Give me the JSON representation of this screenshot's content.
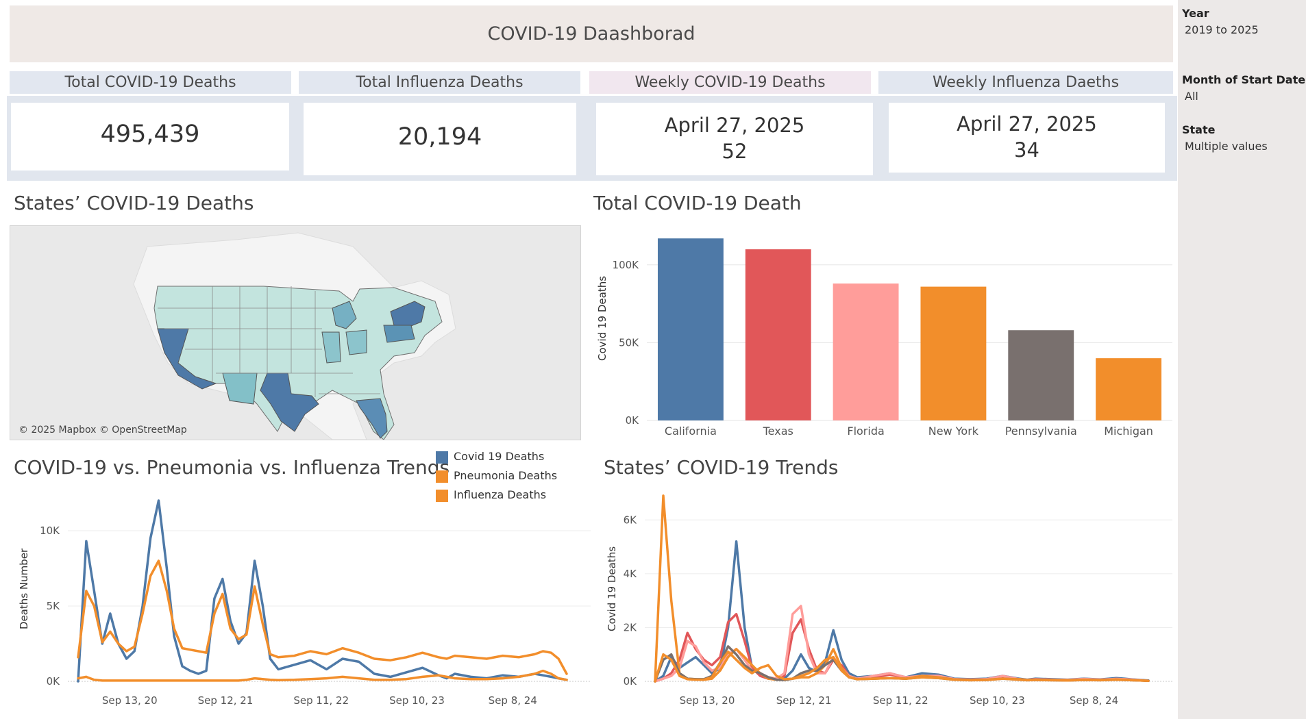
{
  "title": "COVID-19 Daashborad",
  "kpis": [
    {
      "header": "Total COVID-19 Deaths",
      "value": "495,439"
    },
    {
      "header": "Total Influenza Deaths",
      "value": "20,194"
    },
    {
      "header": "Weekly COVID-19 Deaths",
      "date": "April 27, 2025",
      "value": "52"
    },
    {
      "header": "Weekly Influenza Daeths",
      "date": "April 27, 2025",
      "value": "34"
    }
  ],
  "sections": {
    "map_title": "States’ COVID-19 Deaths",
    "bar_title": "Total COVID-19 Death",
    "trends_title": "COVID-19 vs. Pneumonia vs. Influenza Trends",
    "state_trends_title": "States’ COVID-19 Trends"
  },
  "map": {
    "credit": "© 2025 Mapbox © OpenStreetMap"
  },
  "filters": [
    {
      "label": "Year",
      "value": "2019 to 2025"
    },
    {
      "label": "Month of Start Date",
      "value": "All"
    },
    {
      "label": "State",
      "value": "Multiple values"
    }
  ],
  "legend": [
    {
      "label": "Covid 19 Deaths",
      "color": "#4e79a7"
    },
    {
      "label": "Pneumonia Deaths",
      "color": "#f28e2b"
    },
    {
      "label": "Influenza Deaths",
      "color": "#f28e2b"
    }
  ],
  "colors": {
    "california": "#4e79a7",
    "texas": "#e15759",
    "florida": "#ff9d9a",
    "new_york": "#f28e2b",
    "pennsylvania": "#79706e",
    "michigan": "#f28e2b"
  },
  "chart_data": [
    {
      "type": "bar",
      "title": "Total COVID-19 Death",
      "ylabel": "Covid 19 Deaths",
      "categories": [
        "California",
        "Texas",
        "Florida",
        "New York",
        "Pennsylvania",
        "Michigan"
      ],
      "values": [
        117000,
        110000,
        88000,
        86000,
        58000,
        40000
      ],
      "yticks": [
        "0K",
        "50K",
        "100K"
      ],
      "ylim": [
        0,
        125000
      ]
    },
    {
      "type": "line",
      "title": "COVID-19 vs. Pneumonia vs. Influenza Trends",
      "ylabel": "Deaths Number",
      "x": [
        "2020-03-01",
        "2020-04-01",
        "2020-05-01",
        "2020-06-01",
        "2020-07-01",
        "2020-08-01",
        "2020-09-01",
        "2020-10-01",
        "2020-11-01",
        "2020-12-01",
        "2021-01-01",
        "2021-02-01",
        "2021-03-01",
        "2021-04-01",
        "2021-05-01",
        "2021-06-01",
        "2021-07-01",
        "2021-08-01",
        "2021-09-01",
        "2021-10-01",
        "2021-11-01",
        "2021-12-01",
        "2022-01-01",
        "2022-02-01",
        "2022-03-01",
        "2022-04-01",
        "2022-06-01",
        "2022-08-01",
        "2022-10-01",
        "2022-12-01",
        "2023-02-01",
        "2023-04-01",
        "2023-06-01",
        "2023-08-01",
        "2023-10-01",
        "2023-12-01",
        "2024-01-01",
        "2024-02-01",
        "2024-04-01",
        "2024-06-01",
        "2024-08-01",
        "2024-10-01",
        "2024-12-01",
        "2025-01-01",
        "2025-02-01",
        "2025-03-01",
        "2025-04-01"
      ],
      "xticks": [
        "Sep 13, 20",
        "Sep 12, 21",
        "Sep 11, 22",
        "Sep 10, 23",
        "Sep 8, 24"
      ],
      "yticks": [
        "0K",
        "5K",
        "10K"
      ],
      "ylim": [
        0,
        12500
      ],
      "series": [
        {
          "name": "Covid 19 Deaths",
          "values": [
            0,
            9300,
            6000,
            2500,
            4500,
            2500,
            1500,
            2000,
            5000,
            9500,
            12000,
            7500,
            3000,
            1000,
            700,
            500,
            700,
            5500,
            6800,
            4000,
            2500,
            3200,
            8000,
            5000,
            1500,
            800,
            1100,
            1400,
            800,
            1500,
            1300,
            500,
            300,
            600,
            900,
            400,
            200,
            500,
            300,
            200,
            400,
            300,
            500,
            400,
            300,
            200,
            100
          ]
        },
        {
          "name": "Pneumonia Deaths",
          "values": [
            1600,
            6000,
            5000,
            2600,
            3300,
            2500,
            2000,
            2300,
            4500,
            7000,
            8000,
            6000,
            3500,
            2200,
            2100,
            2000,
            1900,
            4500,
            5800,
            3500,
            2800,
            3100,
            6300,
            3800,
            1800,
            1600,
            1700,
            2000,
            1800,
            2200,
            1900,
            1500,
            1400,
            1600,
            1900,
            1600,
            1500,
            1700,
            1600,
            1500,
            1700,
            1600,
            1800,
            2000,
            1900,
            1500,
            500
          ]
        },
        {
          "name": "Influenza Deaths",
          "values": [
            200,
            300,
            100,
            50,
            50,
            50,
            50,
            50,
            50,
            50,
            50,
            50,
            50,
            50,
            50,
            50,
            50,
            50,
            50,
            50,
            50,
            100,
            200,
            150,
            100,
            80,
            100,
            150,
            200,
            300,
            200,
            100,
            100,
            150,
            300,
            400,
            300,
            200,
            150,
            150,
            200,
            300,
            500,
            700,
            500,
            200,
            100
          ]
        }
      ]
    },
    {
      "type": "line",
      "title": "States’ COVID-19 Trends",
      "ylabel": "Covid 19 Deaths",
      "x": [
        "2020-03-01",
        "2020-04-01",
        "2020-05-01",
        "2020-06-01",
        "2020-07-01",
        "2020-08-01",
        "2020-09-01",
        "2020-10-01",
        "2020-11-01",
        "2020-12-01",
        "2021-01-01",
        "2021-02-01",
        "2021-03-01",
        "2021-04-01",
        "2021-05-01",
        "2021-06-01",
        "2021-07-01",
        "2021-08-01",
        "2021-09-01",
        "2021-10-01",
        "2021-11-01",
        "2021-12-01",
        "2022-01-01",
        "2022-02-01",
        "2022-03-01",
        "2022-04-01",
        "2022-06-01",
        "2022-08-01",
        "2022-10-01",
        "2022-12-01",
        "2023-02-01",
        "2023-04-01",
        "2023-06-01",
        "2023-08-01",
        "2023-10-01",
        "2023-12-01",
        "2024-01-01",
        "2024-02-01",
        "2024-04-01",
        "2024-06-01",
        "2024-08-01",
        "2024-10-01",
        "2024-12-01",
        "2025-01-01",
        "2025-02-01",
        "2025-03-01",
        "2025-04-01"
      ],
      "xticks": [
        "Sep 13, 20",
        "Sep 12, 21",
        "Sep 11, 22",
        "Sep 10, 23",
        "Sep 8, 24"
      ],
      "yticks": [
        "0K",
        "2K",
        "4K",
        "6K"
      ],
      "ylim": [
        0,
        7000
      ],
      "series": [
        {
          "name": "California",
          "color": "#4e79a7",
          "values": [
            0,
            200,
            900,
            500,
            700,
            900,
            600,
            300,
            500,
            2000,
            5200,
            2000,
            500,
            300,
            150,
            100,
            100,
            400,
            1000,
            500,
            350,
            700,
            1900,
            800,
            300,
            150,
            200,
            300,
            150,
            300,
            250,
            100,
            80,
            100,
            200,
            100,
            60,
            100,
            80,
            60,
            100,
            70,
            120,
            100,
            70,
            50,
            30
          ]
        },
        {
          "name": "Texas",
          "color": "#e15759",
          "values": [
            0,
            100,
            300,
            800,
            1800,
            1200,
            800,
            600,
            900,
            2200,
            2500,
            1500,
            500,
            200,
            100,
            80,
            200,
            1800,
            2300,
            1200,
            400,
            300,
            800,
            600,
            200,
            100,
            150,
            250,
            150,
            200,
            200,
            80,
            60,
            80,
            150,
            80,
            50,
            80,
            60,
            50,
            80,
            60,
            90,
            80,
            60,
            40,
            20
          ]
        },
        {
          "name": "Florida",
          "color": "#ff9d9a",
          "values": [
            0,
            100,
            200,
            500,
            1500,
            1300,
            700,
            400,
            500,
            1000,
            1200,
            800,
            400,
            300,
            150,
            100,
            300,
            2500,
            2800,
            1000,
            300,
            300,
            900,
            500,
            200,
            100,
            200,
            300,
            150,
            200,
            200,
            80,
            60,
            80,
            200,
            80,
            50,
            70,
            60,
            50,
            90,
            60,
            90,
            80,
            60,
            40,
            20
          ]
        },
        {
          "name": "New York",
          "color": "#f28e2b",
          "values": [
            0,
            6900,
            3000,
            300,
            100,
            80,
            60,
            100,
            400,
            900,
            1200,
            900,
            600,
            300,
            100,
            60,
            50,
            100,
            150,
            150,
            300,
            600,
            1200,
            500,
            150,
            80,
            100,
            120,
            100,
            200,
            150,
            70,
            50,
            60,
            100,
            80,
            50,
            60,
            50,
            40,
            60,
            50,
            70,
            60,
            40,
            30,
            20
          ]
        },
        {
          "name": "Pennsylvania",
          "color": "#79706e",
          "values": [
            0,
            800,
            1000,
            300,
            100,
            80,
            80,
            200,
            700,
            1300,
            1000,
            600,
            400,
            300,
            150,
            60,
            50,
            100,
            300,
            400,
            400,
            600,
            800,
            400,
            150,
            80,
            100,
            120,
            100,
            150,
            120,
            60,
            40,
            50,
            100,
            60,
            40,
            50,
            40,
            30,
            50,
            40,
            60,
            50,
            40,
            30,
            20
          ]
        },
        {
          "name": "Michigan",
          "color": "#f28e2b",
          "values": [
            0,
            1000,
            800,
            200,
            80,
            60,
            60,
            150,
            700,
            1100,
            800,
            500,
            300,
            500,
            600,
            200,
            80,
            100,
            200,
            300,
            500,
            800,
            900,
            400,
            150,
            80,
            100,
            120,
            100,
            150,
            120,
            60,
            40,
            50,
            100,
            60,
            40,
            50,
            40,
            30,
            50,
            40,
            60,
            50,
            40,
            30,
            20
          ]
        }
      ]
    }
  ]
}
